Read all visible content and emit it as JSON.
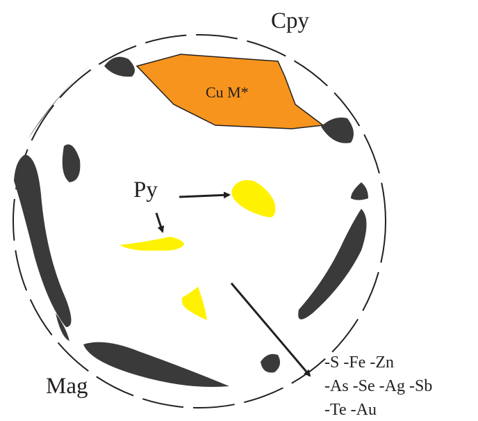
{
  "labels": {
    "cpy": "Cpy",
    "cu_m": "Cu M*",
    "py": "Py",
    "mag": "Mag"
  },
  "elements": [
    "-S -Fe -Zn",
    "-As -Se -Ag -Sb",
    "-Te -Au"
  ]
}
